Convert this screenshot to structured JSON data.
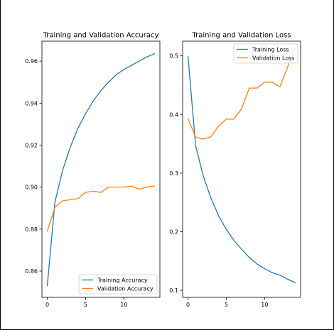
{
  "figure": {
    "colors": {
      "training": "#1f77b4",
      "validation": "#ff7f0e"
    }
  },
  "chart_data": [
    {
      "type": "line",
      "title": "Training and Validation Accuracy",
      "xlabel": "",
      "ylabel": "",
      "xlim": [
        -0.7,
        14.7
      ],
      "ylim": [
        0.8475,
        0.9695
      ],
      "xticks": [
        0,
        5,
        10
      ],
      "xticklabels": [
        "0",
        "5",
        "10"
      ],
      "yticks": [
        0.86,
        0.88,
        0.9,
        0.92,
        0.94,
        0.96
      ],
      "yticklabels": [
        "0.86",
        "0.88",
        "0.90",
        "0.92",
        "0.94",
        "0.96"
      ],
      "grid": false,
      "legend_position": "lower-right",
      "x": [
        0,
        1,
        2,
        3,
        4,
        5,
        6,
        7,
        8,
        9,
        10,
        11,
        12,
        13,
        14
      ],
      "series": [
        {
          "name": "Training Accuracy",
          "color": "#1f77b4",
          "values": [
            0.853,
            0.893,
            0.908,
            0.919,
            0.928,
            0.935,
            0.941,
            0.946,
            0.95,
            0.9535,
            0.956,
            0.958,
            0.96,
            0.962,
            0.9635
          ]
        },
        {
          "name": "Validation Accuracy",
          "color": "#ff7f0e",
          "values": [
            0.879,
            0.8905,
            0.8935,
            0.894,
            0.8945,
            0.8975,
            0.898,
            0.8975,
            0.9,
            0.9,
            0.9,
            0.9005,
            0.899,
            0.9,
            0.9005
          ]
        }
      ]
    },
    {
      "type": "line",
      "title": "Training and Validation Loss",
      "xlabel": "",
      "ylabel": "",
      "xlim": [
        -0.7,
        14.7
      ],
      "ylim": [
        0.088,
        0.525
      ],
      "xticks": [
        0,
        5,
        10
      ],
      "xticklabels": [
        "0",
        "5",
        "10"
      ],
      "yticks": [
        0.1,
        0.2,
        0.3,
        0.4,
        0.5
      ],
      "yticklabels": [
        "0.1",
        "0.2",
        "0.3",
        "0.4",
        "0.5"
      ],
      "grid": false,
      "legend_position": "upper-right",
      "x": [
        0,
        1,
        2,
        3,
        4,
        5,
        6,
        7,
        8,
        9,
        10,
        11,
        12,
        13,
        14
      ],
      "series": [
        {
          "name": "Training Loss",
          "color": "#1f77b4",
          "values": [
            0.499,
            0.346,
            0.295,
            0.257,
            0.227,
            0.204,
            0.185,
            0.17,
            0.156,
            0.145,
            0.137,
            0.13,
            0.126,
            0.119,
            0.113
          ]
        },
        {
          "name": "Validation Loss",
          "color": "#ff7f0e",
          "values": [
            0.393,
            0.361,
            0.358,
            0.362,
            0.38,
            0.392,
            0.392,
            0.41,
            0.445,
            0.445,
            0.455,
            0.455,
            0.447,
            0.481,
            0.514
          ]
        }
      ]
    }
  ]
}
